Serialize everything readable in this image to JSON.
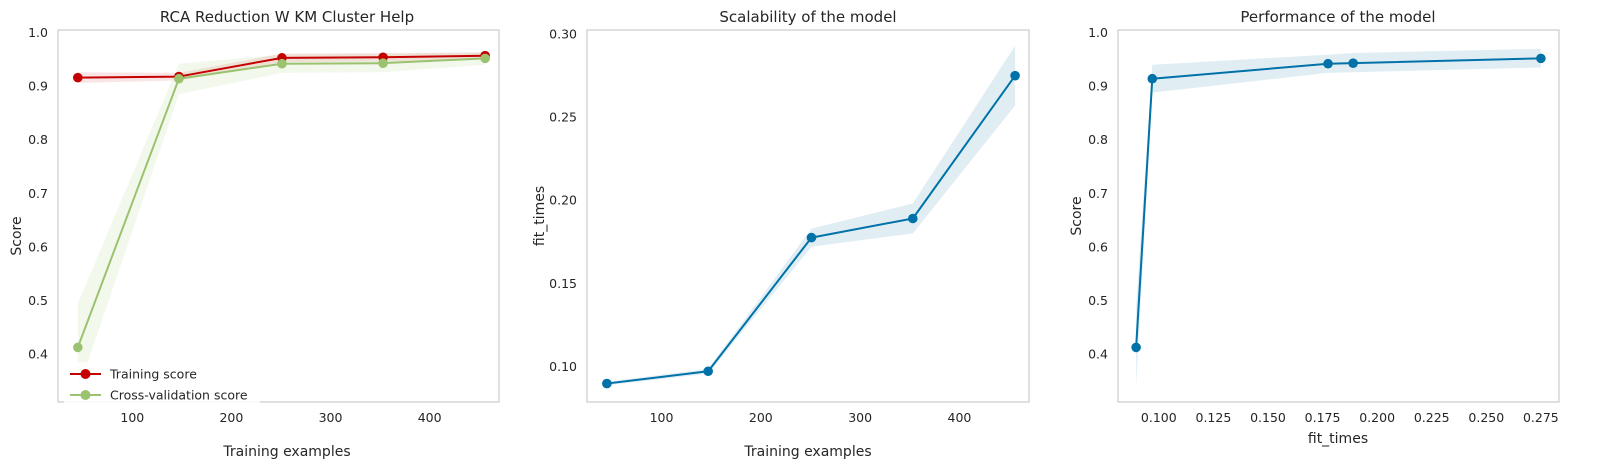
{
  "chart_data": [
    {
      "type": "line",
      "title": "RCA Reduction W KM Cluster Help",
      "xlabel": "Training examples",
      "ylabel": "Score",
      "xlim": [
        25,
        470
      ],
      "ylim": [
        0.31,
        1.005
      ],
      "xticks": [
        100,
        200,
        300,
        400
      ],
      "yticks": [
        0.4,
        0.5,
        0.6,
        0.7,
        0.8,
        0.9,
        1.0
      ],
      "xtick_labels": [
        "100",
        "200",
        "300",
        "400"
      ],
      "ytick_labels": [
        "0.4",
        "0.5",
        "0.6",
        "0.7",
        "0.8",
        "0.9",
        "1.0"
      ],
      "grid": false,
      "legend_position": "lower-left",
      "series": [
        {
          "name": "Training score",
          "color": "#C40000",
          "x": [
            45,
            147,
            251,
            353,
            456
          ],
          "values": [
            0.916,
            0.918,
            0.953,
            0.954,
            0.957
          ],
          "band_lower": [
            0.906,
            0.911,
            0.945,
            0.946,
            0.951
          ],
          "band_upper": [
            0.926,
            0.925,
            0.961,
            0.962,
            0.963
          ]
        },
        {
          "name": "Cross-validation score",
          "color": "#9BC26E",
          "x": [
            45,
            147,
            251,
            353,
            456
          ],
          "values": [
            0.412,
            0.914,
            0.942,
            0.943,
            0.952
          ],
          "band_lower": [
            0.33,
            0.885,
            0.925,
            0.926,
            0.94
          ],
          "band_upper": [
            0.494,
            0.942,
            0.959,
            0.96,
            0.964
          ]
        }
      ]
    },
    {
      "type": "line",
      "title": "Scalability of the model",
      "xlabel": "Training examples",
      "ylabel": "fit_times",
      "xlim": [
        25,
        470
      ],
      "ylim": [
        0.0785,
        0.3025
      ],
      "xticks": [
        100,
        200,
        300,
        400
      ],
      "yticks": [
        0.1,
        0.15,
        0.2,
        0.25,
        0.3
      ],
      "xtick_labels": [
        "100",
        "200",
        "300",
        "400"
      ],
      "ytick_labels": [
        "0.10",
        "0.15",
        "0.20",
        "0.25",
        "0.30"
      ],
      "grid": false,
      "series": [
        {
          "color": "#0072A8",
          "x": [
            45,
            147,
            251,
            353,
            456
          ],
          "values": [
            0.0896,
            0.097,
            0.1775,
            0.189,
            0.275
          ],
          "band_lower": [
            0.0885,
            0.0955,
            0.172,
            0.18,
            0.257
          ],
          "band_upper": [
            0.0907,
            0.0985,
            0.183,
            0.198,
            0.293
          ]
        }
      ]
    },
    {
      "type": "line",
      "title": "Performance of the model",
      "xlabel": "fit_times",
      "ylabel": "Score",
      "xlim": [
        0.0813,
        0.2833
      ],
      "ylim": [
        0.31,
        1.005
      ],
      "xticks": [
        0.1,
        0.125,
        0.15,
        0.175,
        0.2,
        0.225,
        0.25,
        0.275
      ],
      "yticks": [
        0.4,
        0.5,
        0.6,
        0.7,
        0.8,
        0.9,
        1.0
      ],
      "xtick_labels": [
        "0.100",
        "0.125",
        "0.150",
        "0.175",
        "0.200",
        "0.225",
        "0.250",
        "0.275"
      ],
      "ytick_labels": [
        "0.4",
        "0.5",
        "0.6",
        "0.7",
        "0.8",
        "0.9",
        "1.0"
      ],
      "grid": false,
      "series": [
        {
          "color": "#0072A8",
          "x": [
            0.0896,
            0.097,
            0.1775,
            0.189,
            0.275
          ],
          "values": [
            0.412,
            0.914,
            0.942,
            0.943,
            0.952
          ],
          "band_lower": [
            0.34,
            0.888,
            0.925,
            0.926,
            0.935
          ],
          "band_upper": [
            0.49,
            0.94,
            0.959,
            0.962,
            0.97
          ]
        }
      ]
    }
  ]
}
